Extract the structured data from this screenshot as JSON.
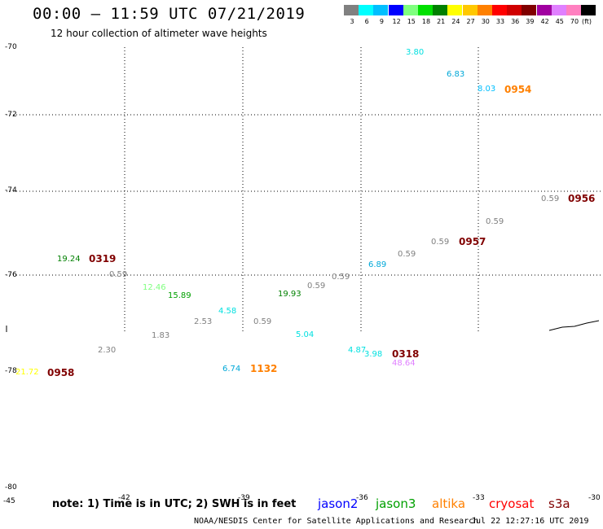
{
  "title": "00:00 – 11:59 UTC 07/21/2019",
  "subtitle": "12 hour collection of altimeter wave heights",
  "legend": {
    "unit": "(ft)",
    "items": [
      {
        "label": "3",
        "color": "#808080"
      },
      {
        "label": "6",
        "color": "#00ffff"
      },
      {
        "label": "9",
        "color": "#00bfff"
      },
      {
        "label": "12",
        "color": "#0000ff"
      },
      {
        "label": "15",
        "color": "#7fff7f"
      },
      {
        "label": "18",
        "color": "#00e000"
      },
      {
        "label": "21",
        "color": "#008000"
      },
      {
        "label": "24",
        "color": "#ffff00"
      },
      {
        "label": "27",
        "color": "#ffc800"
      },
      {
        "label": "30",
        "color": "#ff8000"
      },
      {
        "label": "33",
        "color": "#ff0000"
      },
      {
        "label": "36",
        "color": "#d00000"
      },
      {
        "label": "39",
        "color": "#800000"
      },
      {
        "label": "42",
        "color": "#a000a0"
      },
      {
        "label": "45",
        "color": "#e080ff"
      },
      {
        "label": "70",
        "color": "#ff80c0"
      },
      {
        "label": "",
        "color": "#000000"
      }
    ]
  },
  "lat_labels": [
    "-70",
    "-72",
    "-74",
    "-76",
    "-78",
    "-80"
  ],
  "lon_labels": [
    "-45",
    "-42",
    "-39",
    "-36",
    "-33",
    "-30"
  ],
  "observations": [
    {
      "text": "3.80",
      "color": "#00e0e0"
    },
    {
      "text": "6.83",
      "color": "#00a8d8"
    },
    {
      "text": "8.03",
      "color": "#00bfff"
    },
    {
      "text": "0954",
      "color": "#ff8000"
    },
    {
      "text": "0.59",
      "color": "#808080"
    },
    {
      "text": "0956",
      "color": "#800000"
    },
    {
      "text": "0.59",
      "color": "#808080"
    },
    {
      "text": "0.59",
      "color": "#808080"
    },
    {
      "text": "0957",
      "color": "#800000"
    },
    {
      "text": "0.59",
      "color": "#808080"
    },
    {
      "text": "6.89",
      "color": "#00a8d8"
    },
    {
      "text": "0.59",
      "color": "#808080"
    },
    {
      "text": "0.59",
      "color": "#808080"
    },
    {
      "text": "19.93",
      "color": "#008000"
    },
    {
      "text": "19.24",
      "color": "#008000"
    },
    {
      "text": "0319",
      "color": "#800000"
    },
    {
      "text": "0.59",
      "color": "#808080"
    },
    {
      "text": "12.46",
      "color": "#7fff7f"
    },
    {
      "text": "15.89",
      "color": "#00a000"
    },
    {
      "text": "4.58",
      "color": "#00e0e0"
    },
    {
      "text": "2.53",
      "color": "#808080"
    },
    {
      "text": "0.59",
      "color": "#808080"
    },
    {
      "text": "1.83",
      "color": "#808080"
    },
    {
      "text": "5.04",
      "color": "#00e0e0"
    },
    {
      "text": "2.30",
      "color": "#808080"
    },
    {
      "text": "4.87",
      "color": "#00e0e0"
    },
    {
      "text": "3.98",
      "color": "#00e0e0"
    },
    {
      "text": "0318",
      "color": "#800000"
    },
    {
      "text": "48.64",
      "color": "#e080ff"
    },
    {
      "text": "6.74",
      "color": "#00a8d8"
    },
    {
      "text": "1132",
      "color": "#ff8000"
    },
    {
      "text": "21.72",
      "color": "#ffff00"
    },
    {
      "text": "0958",
      "color": "#800000"
    }
  ],
  "note": "note: 1) Time is in UTC; 2) SWH is in feet",
  "satellites": [
    {
      "name": "jason2",
      "color": "#0000ff"
    },
    {
      "name": "jason3",
      "color": "#00a000"
    },
    {
      "name": "altika",
      "color": "#ff8000"
    },
    {
      "name": "cryosat",
      "color": "#ff0000"
    },
    {
      "name": "s3a",
      "color": "#800000"
    }
  ],
  "credit": "NOAA/NESDIS Center for Satellite Applications and Research",
  "credit_timestamp": "Jul 22 12:27:16 UTC 2019"
}
